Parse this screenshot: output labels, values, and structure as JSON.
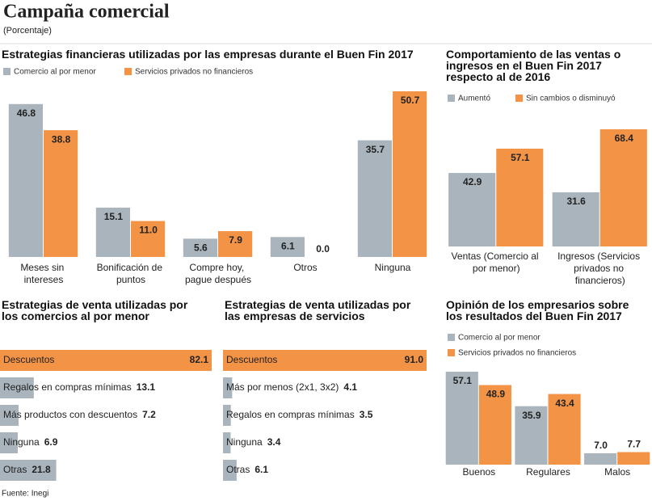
{
  "header": {
    "title": "Campaña comercial",
    "subtitle": "(Porcentaje)"
  },
  "source": "Fuente: Inegi",
  "chart_data": [
    {
      "type": "bar",
      "title": "Estrategias financieras utilizadas por las empresas durante el Buen Fin 2017",
      "categories": [
        "Meses sin intereses",
        "Bonificación de puntos",
        "Compre hoy, pague después",
        "Otros",
        "Ninguna"
      ],
      "series": [
        {
          "name": "Comercio al por menor",
          "color": "#a9b4bc",
          "values": [
            46.8,
            15.1,
            5.6,
            6.1,
            35.7
          ]
        },
        {
          "name": "Servicios privados no financieros",
          "color": "#f39346",
          "values": [
            38.8,
            11.0,
            7.9,
            0.0,
            50.7
          ],
          "value_labels": [
            "38.8",
            "11.0",
            "7.9",
            "0.0",
            "50.7"
          ]
        }
      ]
    },
    {
      "type": "bar",
      "title": "Comportamiento de las ventas o ingresos en el Buen Fin 2017 respecto al de 2016",
      "categories": [
        "Ventas (Comercio al por menor)",
        "Ingresos (Servicios privados no financieros)"
      ],
      "series": [
        {
          "name": "Aumentó",
          "color": "#a9b4bc",
          "values": [
            42.9,
            31.6
          ]
        },
        {
          "name": "Sin cambios o disminuyó",
          "color": "#f39346",
          "values": [
            57.1,
            68.4
          ]
        }
      ]
    },
    {
      "type": "barh",
      "title": "Estrategias de venta utilizadas por los comercios al por menor",
      "categories": [
        "Descuentos",
        "Regalos en compras mínimas",
        "Más productos con descuentos",
        "Ninguna",
        "Otras"
      ],
      "values": [
        82.1,
        13.1,
        7.2,
        6.9,
        21.8
      ],
      "colors": [
        "#f39346",
        "#a9b4bc",
        "#a9b4bc",
        "#a9b4bc",
        "#a9b4bc"
      ]
    },
    {
      "type": "barh",
      "title": "Estrategias de venta utilizadas por las empresas de servicios",
      "categories": [
        "Descuentos",
        "Más por menos (2x1, 3x2)",
        "Regalos en compras mínimas",
        "Ninguna",
        "Otras"
      ],
      "values": [
        91.0,
        4.1,
        3.5,
        3.4,
        6.1
      ],
      "value_labels": [
        "91.0",
        "4.1",
        "3.5",
        "3.4",
        "6.1"
      ],
      "colors": [
        "#f39346",
        "#a9b4bc",
        "#a9b4bc",
        "#a9b4bc",
        "#a9b4bc"
      ]
    },
    {
      "type": "bar",
      "title": "Opinión de los empresarios sobre los resultados del Buen Fin 2017",
      "categories": [
        "Buenos",
        "Regulares",
        "Malos"
      ],
      "series": [
        {
          "name": "Comercio al por menor",
          "color": "#a9b4bc",
          "values": [
            57.1,
            35.9,
            7.0
          ],
          "value_labels": [
            "57.1",
            "35.9",
            "7.0"
          ]
        },
        {
          "name": "Servicios privados no financieros",
          "color": "#f39346",
          "values": [
            48.9,
            43.4,
            7.7
          ]
        }
      ]
    }
  ]
}
